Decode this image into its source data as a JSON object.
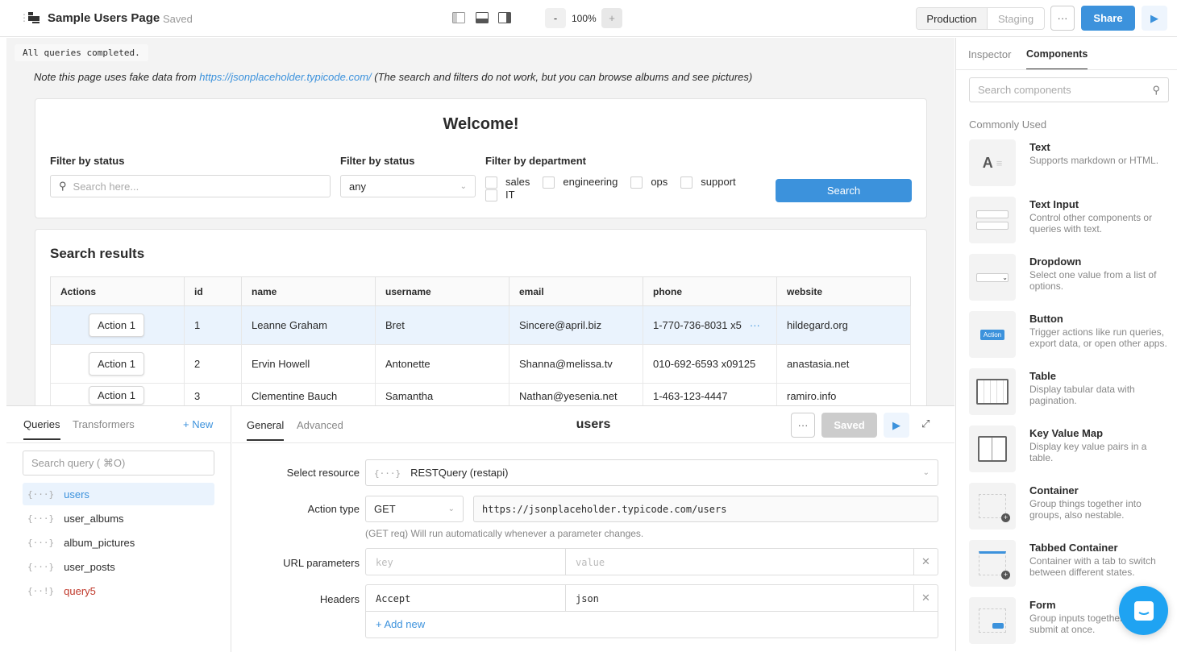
{
  "header": {
    "title": "Sample Users Page",
    "status": "Saved",
    "zoom": "100%",
    "zoom_minus": "-",
    "zoom_plus": "+",
    "env_production": "Production",
    "env_staging": "Staging",
    "more": "···",
    "share": "Share"
  },
  "canvas": {
    "note_prefix": "Note this page uses fake data from ",
    "note_link": "https://jsonplaceholder.typicode.com/",
    "note_suffix": " (The search and filters do not work, but you can browse albums and see pictures)",
    "welcome": "Welcome!",
    "filter1_label": "Filter by status",
    "filter1_placeholder": "Search here...",
    "filter2_label": "Filter by status",
    "filter2_value": "any",
    "filter3_label": "Filter by department",
    "departments": [
      "sales",
      "engineering",
      "ops",
      "support",
      "IT"
    ],
    "search_button": "Search",
    "results_title": "Search results",
    "columns": [
      "Actions",
      "id",
      "name",
      "username",
      "email",
      "phone",
      "website"
    ],
    "rows": [
      {
        "action": "Action 1",
        "id": "1",
        "name": "Leanne Graham",
        "username": "Bret",
        "email": "Sincere@april.biz",
        "phone": "1-770-736-8031 x5",
        "website": "hildegard.org"
      },
      {
        "action": "Action 1",
        "id": "2",
        "name": "Ervin Howell",
        "username": "Antonette",
        "email": "Shanna@melissa.tv",
        "phone": "010-692-6593 x09125",
        "website": "anastasia.net"
      },
      {
        "action": "Action 1",
        "id": "3",
        "name": "Clementine Bauch",
        "username": "Samantha",
        "email": "Nathan@yesenia.net",
        "phone": "1-463-123-4447",
        "website": "ramiro.info"
      }
    ],
    "toast": "All queries completed."
  },
  "queries": {
    "tab_queries": "Queries",
    "tab_transformers": "Transformers",
    "new": "+ New",
    "search_placeholder": "Search query ( ⌘O)",
    "items": [
      {
        "name": "users"
      },
      {
        "name": "user_albums"
      },
      {
        "name": "album_pictures"
      },
      {
        "name": "user_posts"
      },
      {
        "name": "query5"
      }
    ]
  },
  "editor": {
    "tab_general": "General",
    "tab_advanced": "Advanced",
    "title": "users",
    "more": "···",
    "saved": "Saved",
    "resource_label": "Select resource",
    "resource_value": "RESTQuery (restapi)",
    "action_label": "Action type",
    "action_value": "GET",
    "url": "https://jsonplaceholder.typicode.com/users",
    "hint": "(GET req) Will run automatically whenever a parameter changes.",
    "params_label": "URL parameters",
    "key_placeholder": "key",
    "value_placeholder": "value",
    "headers_label": "Headers",
    "header_key": "Accept",
    "header_value": "json",
    "add_new": "+ Add new"
  },
  "right": {
    "tab_inspector": "Inspector",
    "tab_components": "Components",
    "search_placeholder": "Search components",
    "section": "Commonly Used",
    "components": [
      {
        "title": "Text",
        "desc": "Supports markdown or HTML."
      },
      {
        "title": "Text Input",
        "desc": "Control other components or queries with text."
      },
      {
        "title": "Dropdown",
        "desc": "Select one value from a list of options."
      },
      {
        "title": "Button",
        "desc": "Trigger actions like run queries, export data, or open other apps.",
        "icon_label": "Action"
      },
      {
        "title": "Table",
        "desc": "Display tabular data with pagination."
      },
      {
        "title": "Key Value Map",
        "desc": "Display key value pairs in a table."
      },
      {
        "title": "Container",
        "desc": "Group things together into groups, also nestable."
      },
      {
        "title": "Tabbed Container",
        "desc": "Container with a tab to switch between different states."
      },
      {
        "title": "Form",
        "desc": "Group inputs together and submit at once."
      }
    ]
  },
  "colors": {
    "accent": "#3c92dc",
    "error": "#c0392b",
    "chat": "#1fa3f2"
  }
}
